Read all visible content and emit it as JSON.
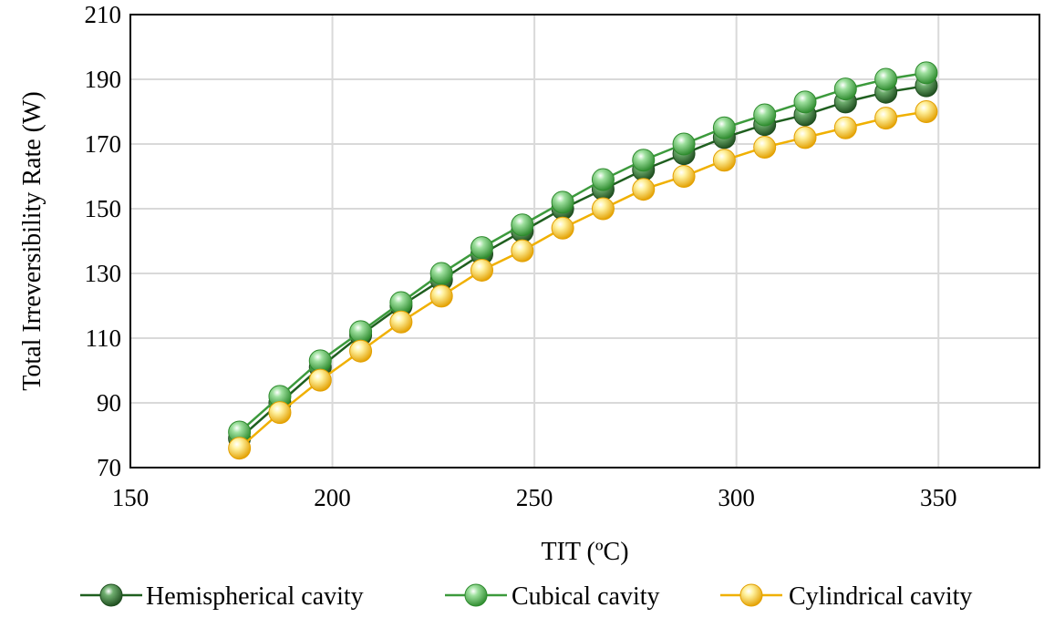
{
  "chart_data": {
    "type": "line",
    "xlabel": "TIT  (ºC)",
    "ylabel": "Total Irreversibility  Rate (W)",
    "xlim": [
      150,
      375
    ],
    "ylim": [
      70,
      210
    ],
    "xticks": [
      150,
      200,
      250,
      300,
      350
    ],
    "yticks": [
      70,
      90,
      110,
      130,
      150,
      170,
      190,
      210
    ],
    "grid": true,
    "legend_position": "bottom",
    "x": [
      177,
      187,
      197,
      207,
      217,
      227,
      237,
      247,
      257,
      267,
      277,
      287,
      297,
      307,
      317,
      327,
      337,
      347
    ],
    "series": [
      {
        "name": "Hemispherical cavity",
        "line_color": "#1f5f1f",
        "marker_light": "#6fae6f",
        "marker_dark": "#1e4d1e",
        "values": [
          79,
          90,
          101,
          111,
          120,
          128,
          136,
          143,
          150,
          156,
          162,
          167,
          172,
          176,
          179,
          183,
          186,
          188
        ]
      },
      {
        "name": "Cubical cavity",
        "line_color": "#3c9a3c",
        "marker_light": "#9ee09e",
        "marker_dark": "#2e8b2e",
        "values": [
          81,
          92,
          103,
          112,
          121,
          130,
          138,
          145,
          152,
          159,
          165,
          170,
          175,
          179,
          183,
          187,
          190,
          192
        ]
      },
      {
        "name": "Cylindrical cavity",
        "line_color": "#f0b000",
        "marker_light": "#fff2a0",
        "marker_dark": "#e3a000",
        "values": [
          76,
          87,
          97,
          106,
          115,
          123,
          131,
          137,
          144,
          150,
          156,
          160,
          165,
          169,
          172,
          175,
          178,
          180
        ]
      }
    ]
  }
}
